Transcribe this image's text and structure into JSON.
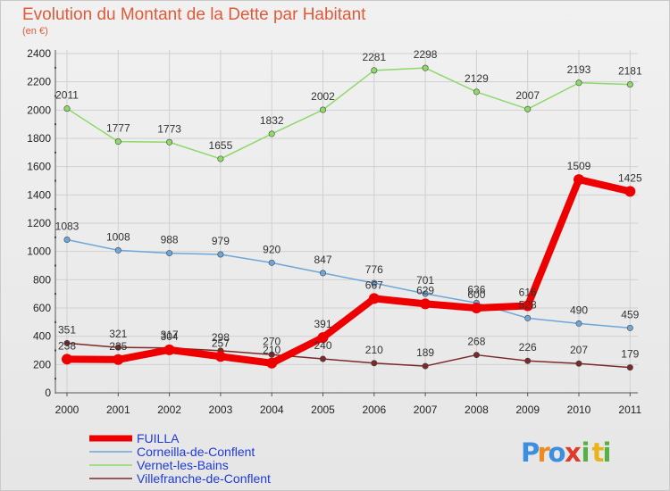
{
  "chart_data": {
    "type": "line",
    "title": "Evolution du Montant de la Dette par Habitant",
    "subtitle": "(en €)",
    "xlabel": "",
    "ylabel": "",
    "ylim": [
      0,
      2400
    ],
    "y_ticks": [
      0,
      200,
      400,
      600,
      800,
      1000,
      1200,
      1400,
      1600,
      1800,
      2000,
      2200,
      2400
    ],
    "categories": [
      "2000",
      "2001",
      "2002",
      "2003",
      "2004",
      "2005",
      "2006",
      "2007",
      "2008",
      "2009",
      "2010",
      "2011"
    ],
    "grid": true,
    "legend_position": "bottom-left",
    "series": [
      {
        "name": "FUILLA",
        "color": "#ee0000",
        "values": [
          238,
          235,
          304,
          257,
          210,
          391,
          667,
          629,
          600,
          616,
          1509,
          1425
        ]
      },
      {
        "name": "Corneilla-de-Conflent",
        "color": "#6fa6d9",
        "values": [
          1083,
          1008,
          988,
          979,
          920,
          847,
          776,
          701,
          636,
          528,
          490,
          459
        ]
      },
      {
        "name": "Vernet-les-Bains",
        "color": "#8fd86a",
        "values": [
          2011,
          1777,
          1773,
          1655,
          1832,
          2002,
          2281,
          2298,
          2129,
          2007,
          2193,
          2181
        ]
      },
      {
        "name": "Villefranche-de-Conflent",
        "color": "#7a2a2a",
        "values": [
          351,
          321,
          317,
          298,
          270,
          240,
          210,
          189,
          268,
          226,
          207,
          179
        ]
      }
    ]
  },
  "logo": {
    "letters": [
      "P",
      "r",
      "o",
      "x",
      "i",
      "t",
      "i"
    ]
  }
}
